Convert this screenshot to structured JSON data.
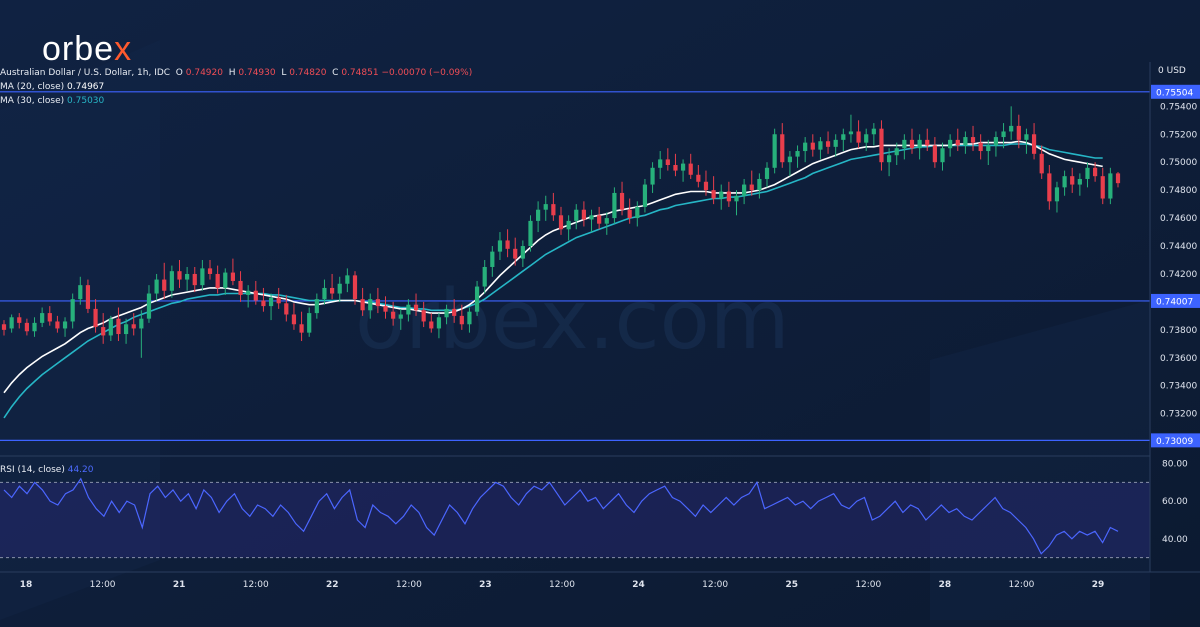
{
  "brand": {
    "text_main": "orbe",
    "text_accent": "x"
  },
  "watermark": "orbex.com",
  "legend": {
    "title": "Australian Dollar / U.S. Dollar, 1h, IDC",
    "o_label": "O",
    "o_value": "0.74920",
    "h_label": "H",
    "h_value": "0.74930",
    "l_label": "L",
    "l_value": "0.74820",
    "c_label": "C",
    "c_value": "0.74851",
    "change": "−0.00070 (−0.09%)",
    "ma20_label": "MA (20, close)",
    "ma20_value": "0.74967",
    "ma30_label": "MA (30, close)",
    "ma30_value": "0.75030",
    "rsi_label": "RSI (14, close)",
    "rsi_value": "44.20",
    "currency": "USD",
    "top_right": "0"
  },
  "colors": {
    "background": "#0f1f38",
    "up": "#27b07b",
    "down": "#e83e4c",
    "ma20": "#ffffff",
    "ma30": "#26b6c6",
    "rsi": "#4b66ff",
    "levels": "#3d63ff",
    "axis_text": "#dfe4ee"
  },
  "chart_data": {
    "type": "candlestick",
    "title": "Australian Dollar / U.S. Dollar, 1h, IDC",
    "y_ticks": [
      "0.75400",
      "0.75200",
      "0.75000",
      "0.74800",
      "0.74600",
      "0.74400",
      "0.74200",
      "0.73800",
      "0.73600",
      "0.73400",
      "0.73200"
    ],
    "ylim": [
      0.7294,
      0.7566
    ],
    "x_labels": [
      "18",
      "12:00",
      "21",
      "12:00",
      "22",
      "12:00",
      "23",
      "12:00",
      "24",
      "12:00",
      "25",
      "12:00",
      "28",
      "12:00",
      "29"
    ],
    "levels": [
      {
        "value": 0.75504,
        "label": "0.75504"
      },
      {
        "value": 0.74007,
        "label": "0.74007"
      },
      {
        "value": 0.73009,
        "label": "0.73009"
      }
    ],
    "candles": [
      [
        0.7384,
        0.7387,
        0.7376,
        0.738
      ],
      [
        0.7381,
        0.7391,
        0.7378,
        0.7389
      ],
      [
        0.7389,
        0.7392,
        0.7381,
        0.7385
      ],
      [
        0.7385,
        0.7388,
        0.7376,
        0.7379
      ],
      [
        0.7379,
        0.7389,
        0.7375,
        0.7385
      ],
      [
        0.7385,
        0.7396,
        0.7382,
        0.7392
      ],
      [
        0.7392,
        0.7397,
        0.7383,
        0.7386
      ],
      [
        0.7386,
        0.739,
        0.7378,
        0.7381
      ],
      [
        0.7381,
        0.7389,
        0.7375,
        0.7386
      ],
      [
        0.7386,
        0.7406,
        0.7381,
        0.7402
      ],
      [
        0.7402,
        0.7418,
        0.7398,
        0.7412
      ],
      [
        0.7412,
        0.7416,
        0.7392,
        0.7395
      ],
      [
        0.7395,
        0.7402,
        0.7378,
        0.7382
      ],
      [
        0.7382,
        0.7392,
        0.737,
        0.7376
      ],
      [
        0.7376,
        0.739,
        0.7372,
        0.7388
      ],
      [
        0.7388,
        0.7396,
        0.7372,
        0.7377
      ],
      [
        0.7377,
        0.7388,
        0.737,
        0.7384
      ],
      [
        0.7384,
        0.7392,
        0.7376,
        0.7381
      ],
      [
        0.7381,
        0.7394,
        0.736,
        0.7388
      ],
      [
        0.7388,
        0.7412,
        0.7385,
        0.7406
      ],
      [
        0.7406,
        0.742,
        0.7401,
        0.7416
      ],
      [
        0.7416,
        0.7428,
        0.7402,
        0.7408
      ],
      [
        0.7408,
        0.7426,
        0.7403,
        0.7422
      ],
      [
        0.7422,
        0.743,
        0.741,
        0.7416
      ],
      [
        0.7416,
        0.7425,
        0.7408,
        0.742
      ],
      [
        0.742,
        0.7425,
        0.7407,
        0.7412
      ],
      [
        0.7412,
        0.743,
        0.7408,
        0.7424
      ],
      [
        0.7424,
        0.743,
        0.7416,
        0.742
      ],
      [
        0.742,
        0.7426,
        0.7406,
        0.741
      ],
      [
        0.741,
        0.7424,
        0.7405,
        0.7421
      ],
      [
        0.7421,
        0.7431,
        0.7412,
        0.7415
      ],
      [
        0.7415,
        0.7422,
        0.74,
        0.7405
      ],
      [
        0.7405,
        0.7412,
        0.7396,
        0.7408
      ],
      [
        0.7408,
        0.7415,
        0.7398,
        0.7401
      ],
      [
        0.7401,
        0.741,
        0.7393,
        0.7397
      ],
      [
        0.7397,
        0.7406,
        0.7387,
        0.7403
      ],
      [
        0.7403,
        0.741,
        0.7395,
        0.7399
      ],
      [
        0.7399,
        0.7405,
        0.7386,
        0.7391
      ],
      [
        0.7391,
        0.7399,
        0.738,
        0.7384
      ],
      [
        0.7384,
        0.7393,
        0.7372,
        0.7378
      ],
      [
        0.7378,
        0.7396,
        0.7375,
        0.7392
      ],
      [
        0.7392,
        0.7406,
        0.7388,
        0.7402
      ],
      [
        0.7402,
        0.7416,
        0.7398,
        0.741
      ],
      [
        0.741,
        0.742,
        0.7402,
        0.7406
      ],
      [
        0.7406,
        0.7418,
        0.74,
        0.7413
      ],
      [
        0.7413,
        0.7424,
        0.7407,
        0.7419
      ],
      [
        0.7419,
        0.7422,
        0.7398,
        0.7402
      ],
      [
        0.7402,
        0.741,
        0.739,
        0.7394
      ],
      [
        0.7394,
        0.7406,
        0.7388,
        0.7402
      ],
      [
        0.7402,
        0.741,
        0.7392,
        0.7397
      ],
      [
        0.7397,
        0.7404,
        0.7388,
        0.7393
      ],
      [
        0.7393,
        0.74,
        0.7383,
        0.7388
      ],
      [
        0.7388,
        0.7395,
        0.738,
        0.7391
      ],
      [
        0.7391,
        0.7402,
        0.7386,
        0.7398
      ],
      [
        0.7398,
        0.7406,
        0.739,
        0.7394
      ],
      [
        0.7394,
        0.74,
        0.7382,
        0.7386
      ],
      [
        0.7386,
        0.7392,
        0.7378,
        0.7381
      ],
      [
        0.7381,
        0.7392,
        0.7374,
        0.7389
      ],
      [
        0.7389,
        0.7398,
        0.7384,
        0.7395
      ],
      [
        0.7395,
        0.7402,
        0.7385,
        0.739
      ],
      [
        0.739,
        0.7398,
        0.738,
        0.7384
      ],
      [
        0.7384,
        0.7396,
        0.7378,
        0.7393
      ],
      [
        0.7393,
        0.7415,
        0.739,
        0.7411
      ],
      [
        0.7411,
        0.743,
        0.7406,
        0.7425
      ],
      [
        0.7425,
        0.744,
        0.7418,
        0.7436
      ],
      [
        0.7436,
        0.745,
        0.743,
        0.7444
      ],
      [
        0.7444,
        0.7452,
        0.7432,
        0.7438
      ],
      [
        0.7438,
        0.7446,
        0.7426,
        0.7431
      ],
      [
        0.7431,
        0.7444,
        0.7425,
        0.744
      ],
      [
        0.744,
        0.7462,
        0.7436,
        0.7458
      ],
      [
        0.7458,
        0.7472,
        0.745,
        0.7466
      ],
      [
        0.7466,
        0.7476,
        0.7458,
        0.747
      ],
      [
        0.747,
        0.7478,
        0.7458,
        0.7462
      ],
      [
        0.7462,
        0.7468,
        0.7448,
        0.7452
      ],
      [
        0.7452,
        0.7462,
        0.7444,
        0.7458
      ],
      [
        0.7458,
        0.747,
        0.7452,
        0.7466
      ],
      [
        0.7466,
        0.7472,
        0.7454,
        0.7459
      ],
      [
        0.7459,
        0.7466,
        0.745,
        0.7462
      ],
      [
        0.7462,
        0.7468,
        0.7452,
        0.7456
      ],
      [
        0.7456,
        0.7464,
        0.7448,
        0.746
      ],
      [
        0.746,
        0.7482,
        0.7456,
        0.7478
      ],
      [
        0.7478,
        0.7486,
        0.7462,
        0.7466
      ],
      [
        0.7466,
        0.7474,
        0.7456,
        0.746
      ],
      [
        0.746,
        0.7472,
        0.7454,
        0.7468
      ],
      [
        0.7468,
        0.7488,
        0.7464,
        0.7484
      ],
      [
        0.7484,
        0.75,
        0.7478,
        0.7496
      ],
      [
        0.7496,
        0.7508,
        0.7488,
        0.7502
      ],
      [
        0.7502,
        0.751,
        0.7494,
        0.7498
      ],
      [
        0.7498,
        0.7506,
        0.749,
        0.7494
      ],
      [
        0.7494,
        0.7502,
        0.7486,
        0.7499
      ],
      [
        0.7499,
        0.7506,
        0.7488,
        0.7491
      ],
      [
        0.7491,
        0.7498,
        0.7482,
        0.7486
      ],
      [
        0.7486,
        0.7494,
        0.7476,
        0.748
      ],
      [
        0.748,
        0.749,
        0.747,
        0.7474
      ],
      [
        0.7474,
        0.7484,
        0.7466,
        0.7479
      ],
      [
        0.7479,
        0.7486,
        0.7468,
        0.7472
      ],
      [
        0.7472,
        0.748,
        0.7462,
        0.7476
      ],
      [
        0.7476,
        0.7488,
        0.747,
        0.7484
      ],
      [
        0.7484,
        0.7494,
        0.7476,
        0.748
      ],
      [
        0.748,
        0.7492,
        0.7474,
        0.7488
      ],
      [
        0.7488,
        0.75,
        0.7482,
        0.7496
      ],
      [
        0.7496,
        0.7524,
        0.7492,
        0.752
      ],
      [
        0.752,
        0.7528,
        0.7496,
        0.75
      ],
      [
        0.75,
        0.7508,
        0.749,
        0.7504
      ],
      [
        0.7504,
        0.7512,
        0.7496,
        0.7508
      ],
      [
        0.7508,
        0.7518,
        0.75,
        0.7514
      ],
      [
        0.7514,
        0.752,
        0.7504,
        0.7509
      ],
      [
        0.7509,
        0.7518,
        0.7502,
        0.7515
      ],
      [
        0.7515,
        0.7522,
        0.7506,
        0.7511
      ],
      [
        0.7511,
        0.752,
        0.7504,
        0.7516
      ],
      [
        0.7516,
        0.7524,
        0.7508,
        0.752
      ],
      [
        0.752,
        0.7534,
        0.7514,
        0.7522
      ],
      [
        0.7522,
        0.753,
        0.751,
        0.7514
      ],
      [
        0.7514,
        0.7524,
        0.7508,
        0.752
      ],
      [
        0.752,
        0.7528,
        0.7512,
        0.7524
      ],
      [
        0.7524,
        0.753,
        0.7494,
        0.75
      ],
      [
        0.75,
        0.751,
        0.749,
        0.7505
      ],
      [
        0.7505,
        0.7514,
        0.7498,
        0.751
      ],
      [
        0.751,
        0.752,
        0.7502,
        0.7516
      ],
      [
        0.7516,
        0.7524,
        0.7506,
        0.751
      ],
      [
        0.751,
        0.752,
        0.7502,
        0.7516
      ],
      [
        0.7516,
        0.7524,
        0.7508,
        0.7512
      ],
      [
        0.7512,
        0.7518,
        0.7496,
        0.75
      ],
      [
        0.75,
        0.7514,
        0.7494,
        0.751
      ],
      [
        0.751,
        0.752,
        0.7504,
        0.7516
      ],
      [
        0.7516,
        0.7524,
        0.7508,
        0.7512
      ],
      [
        0.7512,
        0.7522,
        0.7506,
        0.7518
      ],
      [
        0.7518,
        0.7526,
        0.7508,
        0.7514
      ],
      [
        0.7514,
        0.752,
        0.7502,
        0.7508
      ],
      [
        0.7508,
        0.7516,
        0.7498,
        0.7512
      ],
      [
        0.7512,
        0.7522,
        0.7504,
        0.7518
      ],
      [
        0.7518,
        0.7528,
        0.751,
        0.7522
      ],
      [
        0.7522,
        0.754,
        0.7516,
        0.7526
      ],
      [
        0.7526,
        0.7534,
        0.751,
        0.7516
      ],
      [
        0.7516,
        0.7524,
        0.7506,
        0.752
      ],
      [
        0.752,
        0.7528,
        0.7502,
        0.7506
      ],
      [
        0.7506,
        0.7512,
        0.7488,
        0.7492
      ],
      [
        0.7492,
        0.7498,
        0.7466,
        0.7472
      ],
      [
        0.7472,
        0.7486,
        0.7464,
        0.7482
      ],
      [
        0.7482,
        0.7494,
        0.7476,
        0.749
      ],
      [
        0.749,
        0.7496,
        0.7478,
        0.7484
      ],
      [
        0.7484,
        0.7492,
        0.7476,
        0.7488
      ],
      [
        0.7488,
        0.75,
        0.7482,
        0.7496
      ],
      [
        0.7496,
        0.75,
        0.7486,
        0.749
      ],
      [
        0.749,
        0.7496,
        0.747,
        0.7474
      ],
      [
        0.7474,
        0.7496,
        0.747,
        0.7492
      ],
      [
        0.7492,
        0.7493,
        0.7482,
        0.7485
      ]
    ],
    "ma20": [
      0.7335,
      0.7342,
      0.7348,
      0.7353,
      0.7357,
      0.7361,
      0.7364,
      0.7367,
      0.737,
      0.7374,
      0.7378,
      0.7381,
      0.7383,
      0.7385,
      0.7388,
      0.739,
      0.7392,
      0.7394,
      0.7396,
      0.7399,
      0.7401,
      0.7403,
      0.7405,
      0.7406,
      0.7407,
      0.7408,
      0.7409,
      0.741,
      0.741,
      0.741,
      0.7409,
      0.7408,
      0.7407,
      0.7406,
      0.7405,
      0.7404,
      0.7403,
      0.7402,
      0.74,
      0.7399,
      0.7398,
      0.7398,
      0.7399,
      0.74,
      0.7401,
      0.7401,
      0.7401,
      0.74,
      0.7399,
      0.7398,
      0.7397,
      0.7396,
      0.7395,
      0.7395,
      0.7394,
      0.7393,
      0.7392,
      0.7392,
      0.7392,
      0.7393,
      0.7395,
      0.7398,
      0.7402,
      0.7407,
      0.7413,
      0.7419,
      0.7424,
      0.7429,
      0.7434,
      0.7439,
      0.7444,
      0.7448,
      0.7451,
      0.7453,
      0.7455,
      0.7457,
      0.7459,
      0.7461,
      0.7462,
      0.7463,
      0.7465,
      0.7466,
      0.7467,
      0.7468,
      0.7469,
      0.7471,
      0.7473,
      0.7475,
      0.7477,
      0.7478,
      0.7479,
      0.7479,
      0.7479,
      0.7478,
      0.7478,
      0.7478,
      0.7478,
      0.7478,
      0.7479,
      0.748,
      0.7482,
      0.7484,
      0.7487,
      0.749,
      0.7493,
      0.7496,
      0.7499,
      0.7501,
      0.7503,
      0.7505,
      0.7507,
      0.7509,
      0.751,
      0.7511,
      0.7511,
      0.7512,
      0.7512,
      0.7512,
      0.7512,
      0.7512,
      0.7512,
      0.7512,
      0.7512,
      0.7512,
      0.7512,
      0.7513,
      0.7513,
      0.7513,
      0.7514,
      0.7514,
      0.7514,
      0.7514,
      0.7514,
      0.7515,
      0.7514,
      0.7512,
      0.7509,
      0.7506,
      0.7504,
      0.7502,
      0.7501,
      0.75,
      0.7499,
      0.7498,
      0.7497
    ],
    "ma30": [
      0.7317,
      0.7325,
      0.7332,
      0.7338,
      0.7343,
      0.7348,
      0.7352,
      0.7356,
      0.736,
      0.7364,
      0.7368,
      0.7372,
      0.7375,
      0.7378,
      0.7381,
      0.7384,
      0.7386,
      0.7389,
      0.7391,
      0.7393,
      0.7395,
      0.7397,
      0.7399,
      0.74,
      0.7402,
      0.7403,
      0.7404,
      0.7405,
      0.7405,
      0.7406,
      0.7406,
      0.7406,
      0.7406,
      0.7406,
      0.7406,
      0.7405,
      0.7405,
      0.7404,
      0.7403,
      0.7402,
      0.7401,
      0.7401,
      0.7401,
      0.7401,
      0.7401,
      0.7401,
      0.7401,
      0.74,
      0.74,
      0.7399,
      0.7398,
      0.7397,
      0.7396,
      0.7396,
      0.7395,
      0.7395,
      0.7394,
      0.7394,
      0.7394,
      0.7394,
      0.7395,
      0.7397,
      0.7399,
      0.7402,
      0.7406,
      0.741,
      0.7414,
      0.7418,
      0.7422,
      0.7426,
      0.743,
      0.7434,
      0.7437,
      0.744,
      0.7443,
      0.7446,
      0.7448,
      0.745,
      0.7452,
      0.7454,
      0.7456,
      0.7458,
      0.746,
      0.7461,
      0.7462,
      0.7464,
      0.7466,
      0.7467,
      0.7469,
      0.747,
      0.7471,
      0.7472,
      0.7473,
      0.7474,
      0.7474,
      0.7475,
      0.7475,
      0.7476,
      0.7477,
      0.7478,
      0.7479,
      0.7481,
      0.7483,
      0.7485,
      0.7487,
      0.7489,
      0.7492,
      0.7494,
      0.7496,
      0.7498,
      0.75,
      0.7502,
      0.7503,
      0.7504,
      0.7505,
      0.7506,
      0.7507,
      0.7508,
      0.7509,
      0.751,
      0.7511,
      0.7511,
      0.7512,
      0.7512,
      0.7512,
      0.7512,
      0.7512,
      0.7512,
      0.7512,
      0.7512,
      0.7512,
      0.7512,
      0.7513,
      0.7513,
      0.7513,
      0.7512,
      0.7511,
      0.7509,
      0.7508,
      0.7507,
      0.7506,
      0.7505,
      0.7504,
      0.7503,
      0.7503
    ],
    "rsi": {
      "y_ticks": [
        "80.00",
        "60.00",
        "40.00"
      ],
      "ylim": [
        25,
        83
      ],
      "upper": 70,
      "lower": 30,
      "values": [
        66,
        62,
        68,
        64,
        70,
        66,
        60,
        58,
        64,
        66,
        72,
        62,
        56,
        52,
        60,
        54,
        60,
        58,
        46,
        64,
        68,
        62,
        66,
        60,
        64,
        56,
        66,
        62,
        54,
        60,
        64,
        56,
        52,
        58,
        56,
        52,
        58,
        54,
        48,
        44,
        52,
        60,
        64,
        56,
        62,
        66,
        50,
        46,
        58,
        54,
        52,
        48,
        52,
        58,
        54,
        46,
        42,
        50,
        58,
        54,
        48,
        56,
        62,
        66,
        70,
        68,
        62,
        58,
        64,
        68,
        66,
        70,
        64,
        58,
        62,
        66,
        60,
        62,
        56,
        60,
        64,
        58,
        54,
        60,
        64,
        66,
        68,
        62,
        60,
        56,
        52,
        58,
        54,
        58,
        62,
        58,
        62,
        64,
        70,
        56,
        58,
        60,
        62,
        58,
        60,
        56,
        60,
        62,
        64,
        58,
        56,
        60,
        62,
        50,
        52,
        56,
        60,
        54,
        58,
        56,
        50,
        54,
        58,
        54,
        56,
        52,
        50,
        54,
        58,
        62,
        56,
        54,
        50,
        46,
        40,
        32,
        36,
        42,
        44,
        40,
        44,
        42,
        44,
        38,
        46,
        44
      ]
    },
    "last_candle_index_label": "29"
  }
}
